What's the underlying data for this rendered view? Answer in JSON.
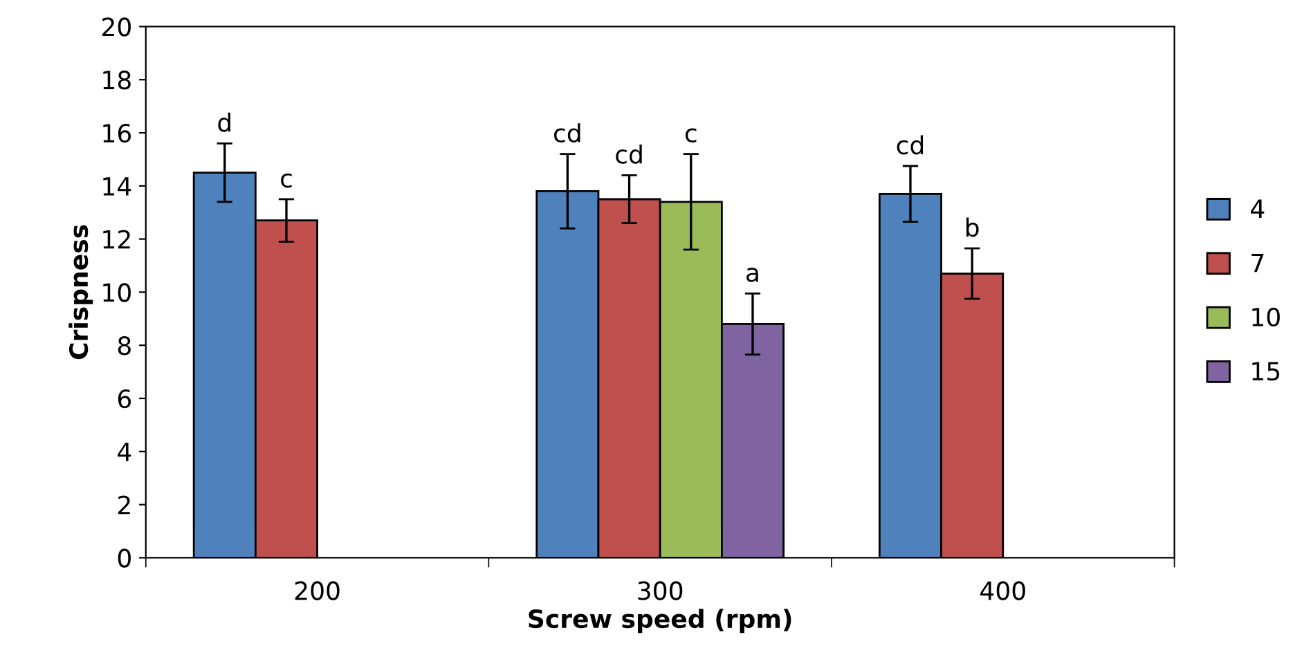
{
  "chart_data": {
    "type": "bar",
    "xlabel": "Screw speed (rpm)",
    "ylabel": "Crispness",
    "categories": [
      "200",
      "300",
      "400"
    ],
    "series": [
      {
        "name": "4",
        "color": "#4f81bd",
        "values": [
          14.5,
          13.8,
          13.7
        ],
        "errors": [
          1.1,
          1.4,
          1.05
        ],
        "value_labels": [
          "d",
          "cd",
          "cd"
        ]
      },
      {
        "name": "7",
        "color": "#c0504d",
        "values": [
          12.7,
          13.5,
          10.7
        ],
        "errors": [
          0.8,
          0.9,
          0.95
        ],
        "value_labels": [
          "c",
          "cd",
          "b"
        ]
      },
      {
        "name": "10",
        "color": "#9bbb59",
        "values": [
          null,
          13.4,
          null
        ],
        "errors": [
          null,
          1.8,
          null
        ],
        "value_labels": [
          null,
          "c",
          null
        ]
      },
      {
        "name": "15",
        "color": "#8064a2",
        "values": [
          null,
          8.8,
          null
        ],
        "errors": [
          null,
          1.15,
          null
        ],
        "value_labels": [
          null,
          "a",
          null
        ]
      }
    ],
    "ylim": [
      0,
      20
    ],
    "yticks": [
      0,
      2,
      4,
      6,
      8,
      10,
      12,
      14,
      16,
      18,
      20
    ],
    "grid": false,
    "legend": "right"
  }
}
